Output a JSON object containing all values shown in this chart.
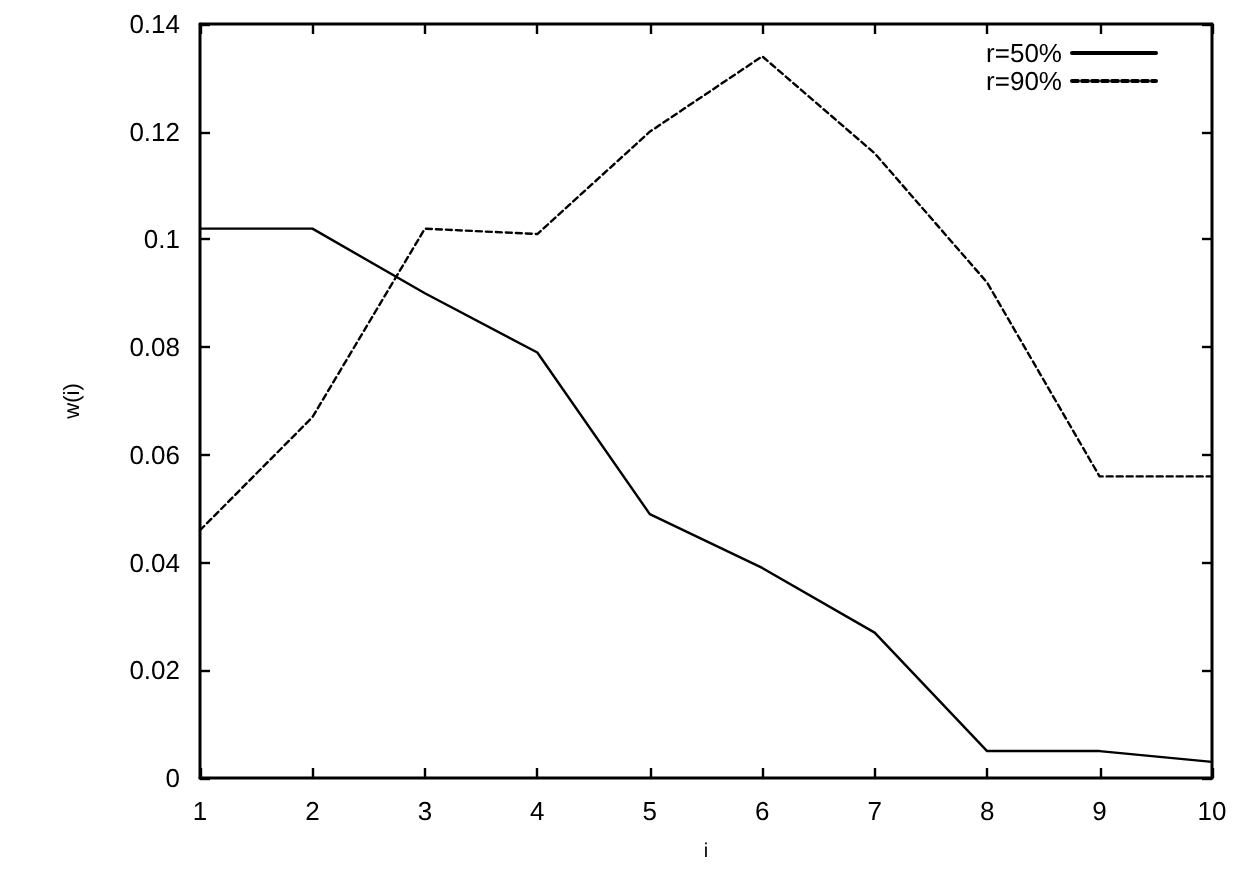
{
  "chart_data": {
    "type": "line",
    "xlabel": "i",
    "ylabel": "w(i)",
    "x": [
      1,
      2,
      3,
      4,
      5,
      6,
      7,
      8,
      9,
      10
    ],
    "series": [
      {
        "name": "r=50%",
        "color": "#000000",
        "line_style": "solid",
        "values": [
          0.102,
          0.102,
          0.09,
          0.079,
          0.049,
          0.039,
          0.027,
          0.005,
          0.005,
          0.003
        ]
      },
      {
        "name": "r=90%",
        "color": "#000000",
        "line_style": "dashed",
        "values": [
          0.046,
          0.067,
          0.102,
          0.101,
          0.12,
          0.134,
          0.116,
          0.092,
          0.056,
          0.056
        ]
      }
    ],
    "xlim": [
      1,
      10
    ],
    "xticks": [
      1,
      2,
      3,
      4,
      5,
      6,
      7,
      8,
      9,
      10
    ],
    "ylim": [
      0,
      0.14
    ],
    "yticks": [
      0,
      0.02,
      0.04,
      0.06,
      0.08,
      0.1,
      0.12,
      0.14
    ],
    "grid": false,
    "legend": "top right",
    "marker": "none"
  }
}
